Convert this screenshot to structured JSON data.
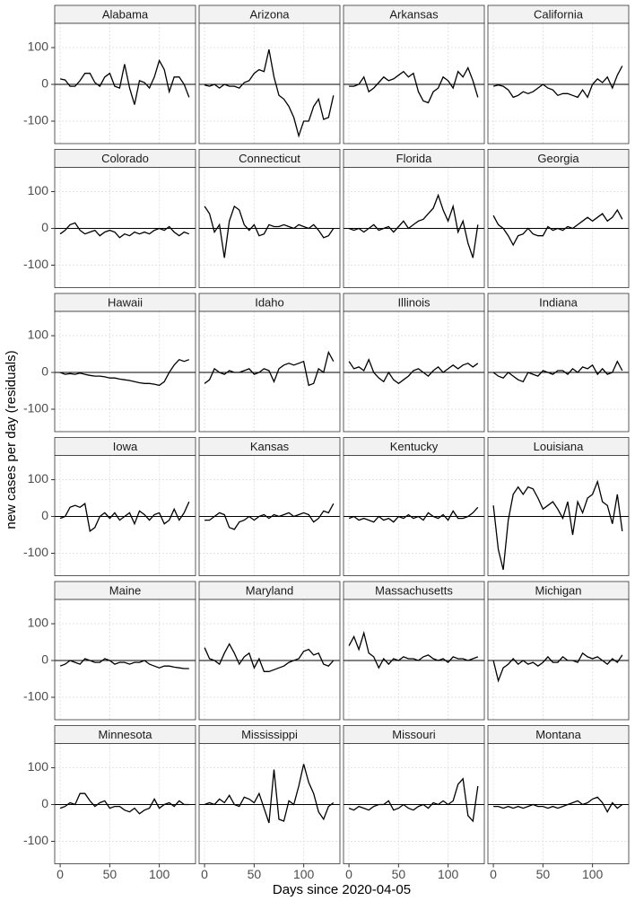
{
  "chart_data": {
    "type": "line",
    "xlabel": "Days since 2020-04-05",
    "ylabel": "new cases per day (residuals)",
    "x": [
      0,
      5,
      10,
      15,
      20,
      25,
      30,
      35,
      40,
      45,
      50,
      55,
      60,
      65,
      70,
      75,
      80,
      85,
      90,
      95,
      100,
      105,
      110,
      115,
      120,
      125,
      130
    ],
    "xlim": [
      -5.5,
      136.5
    ],
    "ylim": [
      -161,
      166
    ],
    "xticks": [
      0,
      50,
      100
    ],
    "yticks": [
      -100,
      0,
      100
    ],
    "hline": 0,
    "grid": true,
    "color": "#000000",
    "panels": [
      {
        "title": "Alabama",
        "values": [
          15,
          12,
          -5,
          -5,
          10,
          30,
          30,
          5,
          -5,
          20,
          30,
          -5,
          -10,
          55,
          -10,
          -55,
          10,
          5,
          -10,
          20,
          65,
          40,
          -20,
          20,
          20,
          0,
          -35
        ]
      },
      {
        "title": "Arizona",
        "values": [
          -2,
          -5,
          0,
          -10,
          0,
          -5,
          -5,
          -10,
          5,
          10,
          30,
          40,
          35,
          95,
          20,
          -30,
          -40,
          -60,
          -90,
          -140,
          -100,
          -100,
          -60,
          -40,
          -95,
          -90,
          -30
        ]
      },
      {
        "title": "Arkansas",
        "values": [
          -5,
          -5,
          0,
          20,
          -20,
          -10,
          5,
          20,
          10,
          15,
          25,
          35,
          20,
          30,
          -20,
          -45,
          -50,
          -20,
          -10,
          20,
          10,
          -10,
          35,
          20,
          45,
          10,
          -35
        ]
      },
      {
        "title": "California",
        "values": [
          -5,
          -2,
          -5,
          -15,
          -35,
          -30,
          -20,
          -25,
          -20,
          -10,
          0,
          -10,
          -15,
          -30,
          -25,
          -25,
          -30,
          -35,
          -15,
          -35,
          0,
          15,
          5,
          20,
          -10,
          25,
          50
        ]
      },
      {
        "title": "Colorado",
        "values": [
          -15,
          -5,
          10,
          15,
          -5,
          -15,
          -10,
          -5,
          -20,
          -10,
          -5,
          -10,
          -25,
          -15,
          -20,
          -10,
          -15,
          -10,
          -15,
          -5,
          0,
          -5,
          5,
          -10,
          -20,
          -10,
          -15
        ]
      },
      {
        "title": "Connecticut",
        "values": [
          60,
          40,
          -10,
          10,
          -80,
          20,
          60,
          50,
          10,
          -5,
          10,
          -20,
          -15,
          10,
          5,
          5,
          10,
          5,
          0,
          10,
          5,
          0,
          10,
          -5,
          -25,
          -20,
          0
        ]
      },
      {
        "title": "Florida",
        "values": [
          0,
          -5,
          0,
          -10,
          0,
          10,
          -5,
          0,
          5,
          -10,
          5,
          20,
          0,
          10,
          20,
          25,
          40,
          55,
          90,
          50,
          20,
          60,
          -10,
          20,
          -40,
          -80,
          10
        ]
      },
      {
        "title": "Georgia",
        "values": [
          35,
          10,
          0,
          -20,
          -45,
          -20,
          -15,
          0,
          -15,
          -20,
          -20,
          5,
          -5,
          0,
          -5,
          5,
          0,
          10,
          20,
          30,
          20,
          30,
          40,
          20,
          30,
          50,
          25
        ]
      },
      {
        "title": "Hawaii",
        "values": [
          0,
          -5,
          -3,
          -5,
          -2,
          -5,
          -8,
          -10,
          -10,
          -12,
          -15,
          -15,
          -18,
          -20,
          -22,
          -25,
          -28,
          -30,
          -30,
          -32,
          -35,
          -25,
          0,
          20,
          35,
          30,
          35
        ]
      },
      {
        "title": "Idaho",
        "values": [
          -30,
          -20,
          10,
          0,
          -5,
          5,
          0,
          0,
          5,
          10,
          -5,
          0,
          10,
          5,
          -25,
          10,
          20,
          25,
          20,
          25,
          30,
          -35,
          -30,
          10,
          0,
          55,
          30
        ]
      },
      {
        "title": "Illinois",
        "values": [
          30,
          10,
          15,
          5,
          35,
          0,
          -15,
          -25,
          0,
          -20,
          -30,
          -20,
          -10,
          5,
          10,
          0,
          -10,
          5,
          15,
          0,
          10,
          20,
          10,
          20,
          25,
          15,
          25
        ]
      },
      {
        "title": "Indiana",
        "values": [
          0,
          -10,
          -15,
          0,
          -10,
          -20,
          -25,
          0,
          -5,
          -10,
          5,
          0,
          -5,
          5,
          5,
          -5,
          10,
          0,
          15,
          10,
          20,
          -5,
          10,
          -5,
          0,
          30,
          5
        ]
      },
      {
        "title": "Iowa",
        "values": [
          -5,
          0,
          25,
          30,
          25,
          35,
          -40,
          -30,
          0,
          10,
          -5,
          10,
          -10,
          0,
          10,
          -20,
          15,
          5,
          -10,
          5,
          10,
          -20,
          -10,
          20,
          -10,
          10,
          40
        ]
      },
      {
        "title": "Kansas",
        "values": [
          -10,
          -10,
          0,
          10,
          5,
          -30,
          -35,
          -15,
          -10,
          0,
          -10,
          0,
          5,
          -5,
          5,
          0,
          5,
          10,
          0,
          5,
          10,
          5,
          -15,
          -5,
          15,
          10,
          35
        ]
      },
      {
        "title": "Kentucky",
        "values": [
          -5,
          0,
          -10,
          -5,
          -10,
          -15,
          0,
          -10,
          -5,
          -15,
          0,
          -5,
          5,
          -5,
          0,
          -10,
          10,
          0,
          -5,
          5,
          -10,
          15,
          -5,
          -5,
          0,
          10,
          25
        ]
      },
      {
        "title": "Louisiana",
        "values": [
          30,
          -90,
          -145,
          -10,
          60,
          80,
          60,
          80,
          75,
          50,
          20,
          30,
          40,
          20,
          -5,
          40,
          -50,
          40,
          10,
          50,
          60,
          95,
          40,
          30,
          -20,
          60,
          -40
        ]
      },
      {
        "title": "Maine",
        "values": [
          -15,
          -10,
          0,
          -5,
          -10,
          5,
          0,
          -5,
          -5,
          5,
          0,
          -10,
          -5,
          -5,
          -10,
          -5,
          -5,
          0,
          -10,
          -15,
          -20,
          -15,
          -15,
          -18,
          -20,
          -22,
          -22
        ]
      },
      {
        "title": "Maryland",
        "values": [
          35,
          5,
          0,
          -10,
          20,
          45,
          20,
          -10,
          10,
          20,
          -20,
          5,
          -30,
          -30,
          -25,
          -20,
          -15,
          -5,
          0,
          5,
          25,
          30,
          15,
          20,
          -10,
          -15,
          0
        ]
      },
      {
        "title": "Massachusetts",
        "values": [
          40,
          65,
          30,
          75,
          20,
          10,
          -20,
          5,
          -10,
          5,
          0,
          10,
          5,
          5,
          0,
          10,
          15,
          5,
          0,
          5,
          -5,
          10,
          5,
          5,
          0,
          5,
          10
        ]
      },
      {
        "title": "Michigan",
        "values": [
          0,
          -55,
          -20,
          -10,
          5,
          -10,
          0,
          -10,
          -5,
          -15,
          -5,
          10,
          -5,
          -5,
          10,
          0,
          0,
          -5,
          20,
          10,
          5,
          10,
          0,
          -10,
          5,
          -5,
          15
        ]
      },
      {
        "title": "Minnesota",
        "values": [
          -10,
          -5,
          5,
          0,
          30,
          30,
          10,
          -5,
          5,
          10,
          -10,
          -5,
          -5,
          -15,
          -20,
          -10,
          -25,
          -15,
          -10,
          15,
          -10,
          0,
          5,
          -5,
          10,
          0,
          0
        ]
      },
      {
        "title": "Mississippi",
        "values": [
          0,
          5,
          0,
          15,
          5,
          25,
          0,
          -5,
          20,
          15,
          5,
          30,
          -10,
          -50,
          95,
          -40,
          -45,
          10,
          0,
          50,
          110,
          60,
          30,
          -20,
          -40,
          -5,
          5
        ]
      },
      {
        "title": "Missouri",
        "values": [
          -10,
          -15,
          -5,
          -10,
          -15,
          -5,
          0,
          0,
          10,
          -15,
          -10,
          0,
          -10,
          -15,
          -5,
          0,
          -10,
          5,
          0,
          10,
          0,
          10,
          55,
          70,
          -30,
          -45,
          50
        ]
      },
      {
        "title": "Montana",
        "values": [
          -5,
          -5,
          -10,
          -5,
          -10,
          -5,
          -10,
          -5,
          0,
          -5,
          -5,
          -10,
          -5,
          -10,
          -5,
          0,
          5,
          10,
          0,
          5,
          15,
          20,
          5,
          -20,
          5,
          -10,
          0
        ]
      }
    ]
  }
}
